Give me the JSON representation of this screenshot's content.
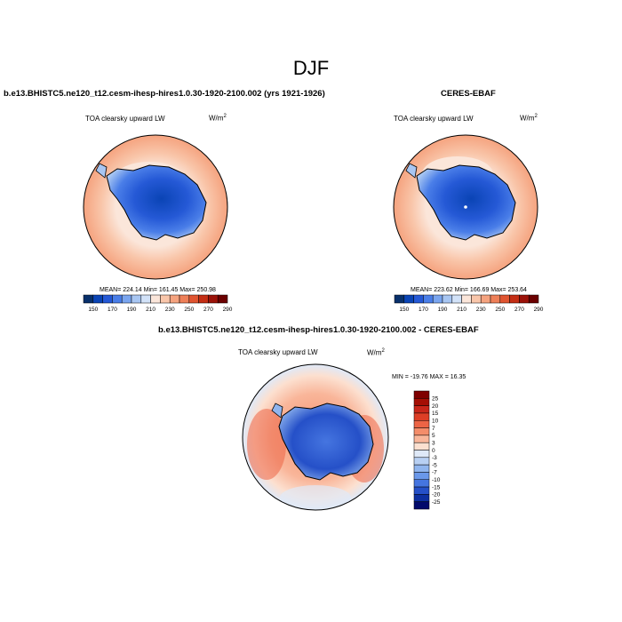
{
  "page": {
    "title": "DJF"
  },
  "panels": [
    {
      "case": "b.e13.BHISTC5.ne120_t12.cesm-ihesp-hires1.0.30-1920-2100.002 (yrs 1921-1926)",
      "variable": "TOA clearsky upward LW",
      "units_base": "W/m",
      "units_exp": "2",
      "stats": "MEAN= 224.14  Min= 161.45  Max= 250.98"
    },
    {
      "case": "CERES-EBAF",
      "variable": "TOA clearsky upward LW",
      "units_base": "W/m",
      "units_exp": "2",
      "stats": "MEAN= 223.62  Min= 166.69  Max= 253.64"
    },
    {
      "case": "b.e13.BHISTC5.ne120_t12.cesm-ihesp-hires1.0.30-1920-2100.002 - CERES-EBAF",
      "variable": "TOA clearsky upward LW",
      "units_base": "W/m",
      "units_exp": "2",
      "stats": "MIN = -19.76 MAX =  16.35"
    }
  ],
  "chart_data": [
    {
      "type": "heatmap",
      "projection": "south-polar-stereographic",
      "title": "TOA clearsky upward LW",
      "colorbar": {
        "orientation": "horizontal",
        "levels": [
          150,
          170,
          190,
          210,
          230,
          250,
          270,
          290
        ],
        "colors": [
          "#08306b",
          "#0a44b5",
          "#2559d6",
          "#4a7ee8",
          "#7aa5ef",
          "#a8c6f2",
          "#d2e2f8",
          "#fbe6da",
          "#f9c6aa",
          "#f5a37f",
          "#ee7f58",
          "#e05430",
          "#c42e14",
          "#9b1209",
          "#6b0000"
        ]
      },
      "stats": {
        "mean": 224.14,
        "min": 161.45,
        "max": 250.98
      }
    },
    {
      "type": "heatmap",
      "projection": "south-polar-stereographic",
      "title": "TOA clearsky upward LW",
      "colorbar": {
        "orientation": "horizontal",
        "levels": [
          150,
          170,
          190,
          210,
          230,
          250,
          270,
          290
        ],
        "colors": [
          "#08306b",
          "#0a44b5",
          "#2559d6",
          "#4a7ee8",
          "#7aa5ef",
          "#a8c6f2",
          "#d2e2f8",
          "#fbe6da",
          "#f9c6aa",
          "#f5a37f",
          "#ee7f58",
          "#e05430",
          "#c42e14",
          "#9b1209",
          "#6b0000"
        ]
      },
      "stats": {
        "mean": 223.62,
        "min": 166.69,
        "max": 253.64
      }
    },
    {
      "type": "heatmap",
      "projection": "south-polar-stereographic",
      "title": "TOA clearsky upward LW",
      "colorbar": {
        "orientation": "vertical",
        "levels": [
          25,
          20,
          15,
          10,
          7,
          5,
          3,
          0,
          -3,
          -5,
          -7,
          -10,
          -15,
          -20,
          -25
        ],
        "colors": [
          "#7f0000",
          "#a50f05",
          "#c8261a",
          "#dd3e26",
          "#ec6445",
          "#f48d6a",
          "#f9b69a",
          "#fce0d0",
          "#dfe9f8",
          "#b8d0f3",
          "#90b5ee",
          "#6a98ea",
          "#4575e0",
          "#2550c8",
          "#0d2fa0",
          "#020a6b"
        ]
      },
      "stats": {
        "min": -19.76,
        "max": 16.35
      }
    }
  ]
}
